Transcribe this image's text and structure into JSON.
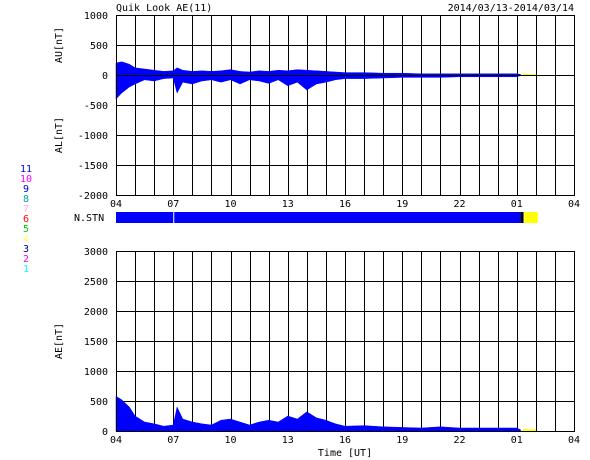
{
  "title": "Quik Look AE(11)",
  "date_range": "2014/03/13-2014/03/14",
  "colors": {
    "blue": "#0000ff",
    "yellow": "#ffff00",
    "legend": [
      "#0000ff",
      "#ff00ff",
      "#0000cd",
      "#00aaaa",
      "#ffaaff",
      "#ff0000",
      "#00d000",
      "#ffff66",
      "#000080",
      "#ff00ff",
      "#00ffff"
    ]
  },
  "legend": [
    "11",
    "10",
    "9",
    "8",
    "7",
    "6",
    "5",
    "4",
    "3",
    "2",
    "1"
  ],
  "stn_label": "N.STN",
  "xlabel": "Time [UT]",
  "chart_data": [
    {
      "type": "area",
      "title": "AU/AL",
      "ylabel_top": "AU[nT]",
      "ylabel_bottom": "AL[nT]",
      "ylim": [
        -2000,
        1000
      ],
      "yticks": [
        1000,
        500,
        0,
        -500,
        -1000,
        -1500,
        -2000
      ],
      "xlim": [
        4,
        28
      ],
      "xticks": [
        "04",
        "07",
        "10",
        "13",
        "16",
        "19",
        "22",
        "01",
        "04"
      ],
      "grid": true,
      "series": [
        {
          "name": "AU",
          "x": [
            4,
            4.3,
            4.7,
            5,
            5.5,
            6,
            6.5,
            7,
            7.2,
            7.5,
            8,
            8.5,
            9,
            9.5,
            10,
            10.5,
            11,
            11.5,
            12,
            12.5,
            13,
            13.5,
            14,
            14.5,
            15,
            15.5,
            16,
            17,
            18,
            19,
            20,
            21,
            22,
            23,
            24,
            25,
            25.2
          ],
          "values": [
            200,
            220,
            180,
            120,
            100,
            80,
            60,
            70,
            120,
            80,
            60,
            70,
            60,
            70,
            90,
            60,
            50,
            70,
            60,
            80,
            70,
            90,
            80,
            70,
            60,
            50,
            40,
            40,
            30,
            30,
            20,
            20,
            20,
            20,
            20,
            20,
            10
          ]
        },
        {
          "name": "AL",
          "x": [
            4,
            4.3,
            4.7,
            5,
            5.5,
            6,
            6.5,
            7,
            7.2,
            7.5,
            8,
            8.5,
            9,
            9.5,
            10,
            10.5,
            11,
            11.5,
            12,
            12.5,
            13,
            13.5,
            14,
            14.5,
            15,
            15.5,
            16,
            17,
            18,
            19,
            20,
            21,
            22,
            23,
            24,
            25,
            25.2
          ],
          "values": [
            -400,
            -300,
            -200,
            -150,
            -80,
            -100,
            -60,
            -50,
            -300,
            -120,
            -150,
            -100,
            -80,
            -120,
            -80,
            -150,
            -80,
            -100,
            -140,
            -80,
            -180,
            -120,
            -250,
            -150,
            -120,
            -80,
            -60,
            -60,
            -50,
            -40,
            -40,
            -40,
            -30,
            -30,
            -30,
            -30,
            -10
          ]
        }
      ],
      "yellow_segment": {
        "x": [
          25.3,
          26
        ],
        "values": [
          20,
          -10
        ]
      }
    },
    {
      "type": "area",
      "title": "AE",
      "ylabel": "AE[nT]",
      "ylim": [
        0,
        3000
      ],
      "yticks": [
        3000,
        2500,
        2000,
        1500,
        1000,
        500,
        0
      ],
      "xlim": [
        4,
        28
      ],
      "xticks": [
        "04",
        "07",
        "10",
        "13",
        "16",
        "19",
        "22",
        "01",
        "04"
      ],
      "grid": true,
      "series": [
        {
          "name": "AE",
          "x": [
            4,
            4.3,
            4.7,
            5,
            5.5,
            6,
            6.5,
            7,
            7.2,
            7.5,
            8,
            8.5,
            9,
            9.5,
            10,
            10.5,
            11,
            11.5,
            12,
            12.5,
            13,
            13.5,
            14,
            14.5,
            15,
            15.5,
            16,
            17,
            18,
            19,
            20,
            21,
            22,
            23,
            24,
            25,
            25.2
          ],
          "values": [
            580,
            520,
            400,
            250,
            150,
            120,
            80,
            100,
            400,
            200,
            150,
            120,
            100,
            180,
            200,
            150,
            100,
            150,
            180,
            150,
            250,
            200,
            320,
            220,
            180,
            120,
            80,
            90,
            70,
            60,
            50,
            70,
            50,
            50,
            50,
            50,
            20
          ]
        }
      ],
      "yellow_segment": {
        "x": [
          25.3,
          26
        ],
        "values": [
          30,
          20
        ]
      }
    }
  ]
}
